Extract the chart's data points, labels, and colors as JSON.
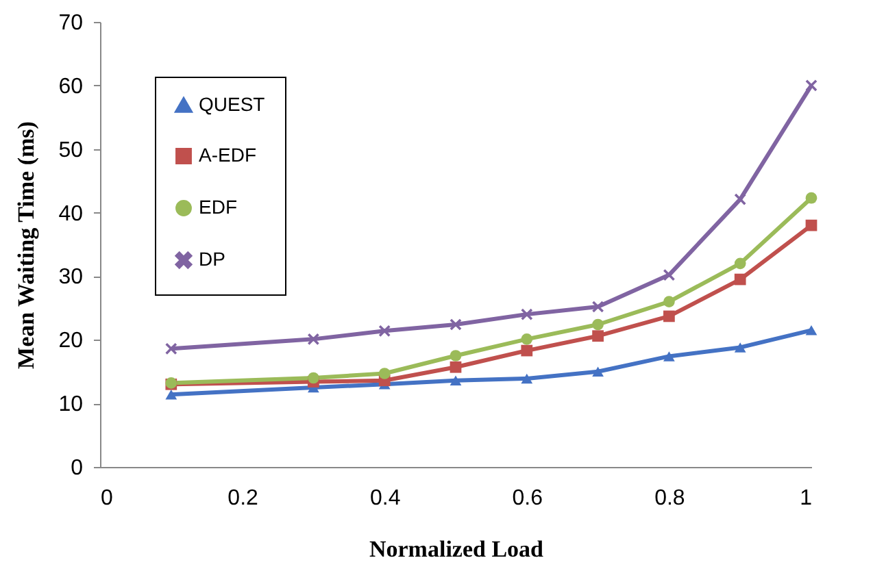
{
  "chart_data": {
    "type": "line",
    "xlabel": "Normalized Load",
    "ylabel": "Mean Waiting Time (ms)",
    "x": [
      0.1,
      0.3,
      0.4,
      0.5,
      0.6,
      0.7,
      0.8,
      0.9,
      1
    ],
    "xlim": [
      0,
      1
    ],
    "xticks": [
      0,
      0.2,
      0.4,
      0.6,
      0.8,
      1
    ],
    "ylim": [
      0,
      70
    ],
    "yticks": [
      0,
      10,
      20,
      30,
      40,
      50,
      60,
      70
    ],
    "grid": false,
    "legend": "top left",
    "line_style": "solid",
    "series": [
      {
        "name": "QUEST",
        "color": "#4472c4",
        "marker": "triangle",
        "values": [
          11.4,
          12.5,
          13,
          13.6,
          13.9,
          15,
          17.4,
          18.8,
          21.5
        ]
      },
      {
        "name": "A-EDF",
        "color": "#c0504d",
        "marker": "square",
        "values": [
          13,
          13.4,
          13.6,
          15.7,
          18.3,
          20.6,
          23.7,
          29.5,
          38
        ]
      },
      {
        "name": "EDF",
        "color": "#9bbb59",
        "marker": "circle",
        "values": [
          13.2,
          14,
          14.7,
          17.5,
          20.1,
          22.4,
          26,
          32,
          42.3
        ]
      },
      {
        "name": "DP",
        "color": "#8064a2",
        "marker": "cross",
        "values": [
          18.6,
          20.1,
          21.4,
          22.4,
          24,
          25.2,
          30.2,
          42.1,
          60
        ]
      }
    ]
  }
}
